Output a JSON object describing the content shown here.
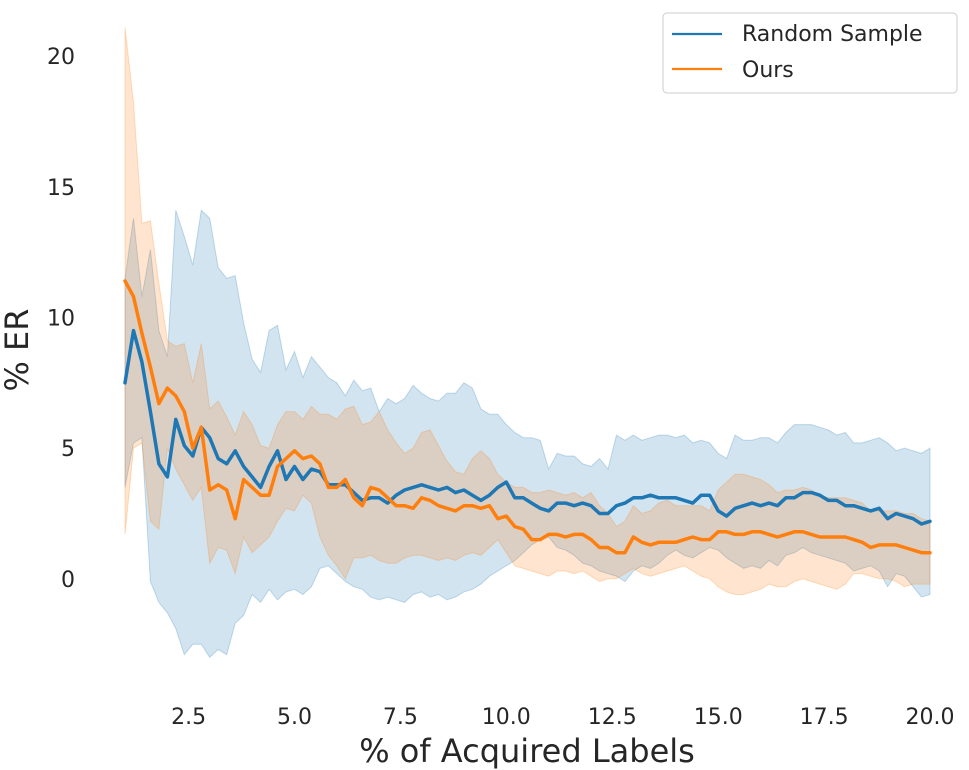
{
  "chart_data": {
    "type": "line",
    "title": "",
    "xlabel": "% of Acquired Labels",
    "ylabel": "% ER",
    "xlim": [
      1.0,
      20.0
    ],
    "ylim": [
      -4.1,
      21.0
    ],
    "xticks": [
      2.5,
      5.0,
      7.5,
      10.0,
      12.5,
      15.0,
      17.5,
      20.0
    ],
    "xtick_labels": [
      "2.5",
      "5.0",
      "7.5",
      "10.0",
      "12.5",
      "15.0",
      "17.5",
      "20.0"
    ],
    "yticks": [
      0,
      5,
      10,
      15,
      20
    ],
    "ytick_labels": [
      "0",
      "5",
      "10",
      "15",
      "20"
    ],
    "grid": false,
    "legend_position": "top-right",
    "x": [
      1.0,
      1.2,
      1.4,
      1.6,
      1.8,
      2.0,
      2.2,
      2.4,
      2.6,
      2.8,
      3.0,
      3.2,
      3.4,
      3.6,
      3.8,
      4.0,
      4.2,
      4.4,
      4.6,
      4.8,
      5.0,
      5.2,
      5.4,
      5.6,
      5.8,
      6.0,
      6.2,
      6.4,
      6.6,
      6.8,
      7.0,
      7.2,
      7.4,
      7.6,
      7.8,
      8.0,
      8.2,
      8.4,
      8.6,
      8.8,
      9.0,
      9.2,
      9.4,
      9.6,
      9.8,
      10.0,
      10.2,
      10.4,
      10.6,
      10.8,
      11.0,
      11.2,
      11.4,
      11.6,
      11.8,
      12.0,
      12.2,
      12.4,
      12.6,
      12.8,
      13.0,
      13.2,
      13.4,
      13.6,
      13.8,
      14.0,
      14.2,
      14.4,
      14.6,
      14.8,
      15.0,
      15.2,
      15.4,
      15.6,
      15.8,
      16.0,
      16.2,
      16.4,
      16.6,
      16.8,
      17.0,
      17.2,
      17.4,
      17.6,
      17.8,
      18.0,
      18.2,
      18.4,
      18.6,
      18.8,
      19.0,
      19.2,
      19.4,
      19.6,
      19.8,
      20.0
    ],
    "series": [
      {
        "name": "Random Sample",
        "color": "#1f77b4",
        "values": [
          7.5,
          9.5,
          8.3,
          6.4,
          4.4,
          3.9,
          6.1,
          5.1,
          4.7,
          5.8,
          5.4,
          4.6,
          4.4,
          4.9,
          4.3,
          3.9,
          3.5,
          4.3,
          4.9,
          3.8,
          4.3,
          3.8,
          4.2,
          4.1,
          3.6,
          3.6,
          3.6,
          3.3,
          3.0,
          3.1,
          3.1,
          2.9,
          3.2,
          3.4,
          3.5,
          3.6,
          3.5,
          3.4,
          3.5,
          3.3,
          3.4,
          3.2,
          3.0,
          3.2,
          3.5,
          3.7,
          3.1,
          3.1,
          2.9,
          2.7,
          2.6,
          2.9,
          2.9,
          2.8,
          2.9,
          2.8,
          2.5,
          2.5,
          2.8,
          2.9,
          3.1,
          3.1,
          3.2,
          3.1,
          3.1,
          3.1,
          3.0,
          2.9,
          3.2,
          3.2,
          2.6,
          2.4,
          2.7,
          2.8,
          2.9,
          2.8,
          2.9,
          2.8,
          3.1,
          3.1,
          3.3,
          3.3,
          3.2,
          3.0,
          3.0,
          2.8,
          2.8,
          2.7,
          2.6,
          2.7,
          2.3,
          2.5,
          2.4,
          2.3,
          2.1,
          2.2
        ],
        "lower": [
          3.5,
          5.2,
          5.4,
          -0.1,
          -0.9,
          -1.3,
          -1.9,
          -2.9,
          -2.5,
          -2.5,
          -3.0,
          -2.7,
          -2.9,
          -1.7,
          -1.4,
          -0.6,
          -0.9,
          -0.4,
          -0.8,
          -0.5,
          -0.4,
          -0.6,
          -0.3,
          0.4,
          0.5,
          0.2,
          -0.1,
          -0.3,
          -0.4,
          -0.7,
          -0.8,
          -0.7,
          -0.8,
          -0.9,
          -0.6,
          -0.5,
          -0.7,
          -0.6,
          -0.8,
          -0.7,
          -0.5,
          -0.4,
          -0.2,
          0.1,
          0.3,
          0.5,
          0.7,
          1.0,
          1.3,
          1.5,
          1.6,
          1.2,
          1.1,
          0.9,
          0.6,
          0.5,
          0.3,
          0.2,
          0.1,
          -0.1,
          0.3,
          0.5,
          0.4,
          0.6,
          0.9,
          1.1,
          0.9,
          0.8,
          1.0,
          1.2,
          1.1,
          0.8,
          0.6,
          0.4,
          0.5,
          0.4,
          0.7,
          0.5,
          0.9,
          1.0,
          1.2,
          1.0,
          0.9,
          0.8,
          0.7,
          0.6,
          0.3,
          0.4,
          0.5,
          0.3,
          -0.3,
          0.2,
          0.1,
          -0.3,
          -0.7,
          -0.6
        ],
        "upper": [
          11.5,
          13.8,
          10.8,
          12.6,
          9.5,
          8.5,
          14.1,
          13.1,
          12.0,
          14.1,
          13.8,
          11.9,
          11.5,
          11.6,
          9.8,
          8.4,
          7.9,
          9.5,
          9.7,
          8.0,
          8.7,
          7.7,
          8.5,
          8.1,
          7.7,
          7.5,
          7.0,
          7.6,
          7.2,
          7.3,
          6.4,
          6.9,
          6.7,
          6.9,
          7.4,
          7.1,
          6.9,
          6.8,
          7.1,
          7.1,
          7.5,
          7.3,
          6.5,
          6.3,
          6.3,
          5.9,
          5.6,
          5.4,
          5.4,
          5.3,
          4.2,
          4.8,
          4.7,
          4.7,
          4.4,
          4.3,
          4.6,
          4.2,
          5.5,
          5.3,
          5.5,
          5.3,
          5.4,
          5.5,
          5.5,
          5.4,
          5.5,
          5.2,
          5.3,
          5.2,
          4.8,
          4.6,
          5.5,
          5.3,
          5.3,
          5.4,
          5.4,
          5.2,
          5.6,
          5.9,
          5.9,
          5.9,
          5.8,
          5.7,
          5.5,
          5.6,
          5.2,
          5.2,
          5.3,
          5.4,
          5.2,
          4.9,
          5.0,
          4.9,
          4.8,
          5.0
        ]
      },
      {
        "name": "Ours",
        "color": "#ff7f0e",
        "values": [
          11.4,
          10.8,
          9.4,
          8.1,
          6.7,
          7.3,
          7.0,
          6.4,
          5.0,
          5.8,
          3.4,
          3.6,
          3.4,
          2.3,
          3.8,
          3.5,
          3.2,
          3.2,
          4.3,
          4.6,
          4.9,
          4.6,
          4.7,
          4.4,
          3.5,
          3.5,
          3.8,
          3.1,
          2.8,
          3.5,
          3.4,
          3.1,
          2.8,
          2.8,
          2.7,
          3.1,
          3.0,
          2.8,
          2.7,
          2.6,
          2.8,
          2.8,
          2.7,
          2.8,
          2.3,
          2.4,
          2.0,
          1.9,
          1.5,
          1.5,
          1.7,
          1.7,
          1.6,
          1.7,
          1.7,
          1.5,
          1.2,
          1.2,
          1.0,
          1.0,
          1.6,
          1.4,
          1.3,
          1.4,
          1.4,
          1.4,
          1.5,
          1.6,
          1.5,
          1.5,
          1.8,
          1.8,
          1.7,
          1.7,
          1.8,
          1.8,
          1.7,
          1.6,
          1.7,
          1.8,
          1.8,
          1.7,
          1.6,
          1.6,
          1.6,
          1.6,
          1.5,
          1.4,
          1.2,
          1.3,
          1.3,
          1.3,
          1.2,
          1.1,
          1.0,
          1.0
        ],
        "lower": [
          1.7,
          5.0,
          5.2,
          2.2,
          1.9,
          5.0,
          4.2,
          3.6,
          3.0,
          3.5,
          0.6,
          1.2,
          1.1,
          0.2,
          1.6,
          1.0,
          1.3,
          1.6,
          2.2,
          2.7,
          2.6,
          3.2,
          2.9,
          1.6,
          0.9,
          0.5,
          0.0,
          0.8,
          0.8,
          0.9,
          0.7,
          0.6,
          0.6,
          0.8,
          0.9,
          0.9,
          0.8,
          0.7,
          0.8,
          0.7,
          0.9,
          1.0,
          0.9,
          1.2,
          1.5,
          1.0,
          0.5,
          0.4,
          0.3,
          0.2,
          0.1,
          0.3,
          0.3,
          0.2,
          0.3,
          0.1,
          -0.1,
          0.0,
          0.0,
          0.2,
          0.4,
          0.2,
          0.1,
          0.2,
          0.3,
          0.4,
          0.5,
          0.3,
          0.1,
          0.0,
          -0.3,
          -0.5,
          -0.6,
          -0.6,
          -0.5,
          -0.4,
          -0.2,
          -0.3,
          -0.3,
          -0.1,
          0.0,
          -0.1,
          -0.2,
          -0.3,
          -0.4,
          -0.2,
          0.2,
          0.2,
          0.1,
          0.0,
          0.0,
          -0.1,
          -0.3,
          -0.2,
          -0.2,
          -0.2
        ],
        "upper": [
          21.1,
          18.2,
          13.6,
          13.7,
          11.3,
          9.1,
          8.9,
          9.0,
          7.5,
          9.0,
          6.5,
          6.8,
          6.2,
          5.5,
          6.4,
          5.9,
          5.1,
          5.0,
          5.9,
          6.4,
          6.4,
          6.1,
          6.6,
          6.3,
          6.3,
          6.1,
          6.5,
          6.6,
          5.9,
          6.0,
          6.4,
          5.7,
          5.2,
          4.8,
          5.0,
          5.6,
          5.7,
          5.1,
          4.5,
          4.1,
          4.0,
          4.6,
          4.9,
          4.6,
          4.0,
          3.7,
          3.5,
          3.5,
          3.3,
          3.3,
          3.4,
          3.3,
          3.2,
          3.3,
          3.1,
          3.3,
          2.8,
          2.5,
          2.0,
          2.2,
          2.8,
          2.5,
          2.6,
          2.9,
          3.0,
          2.8,
          2.8,
          2.8,
          2.8,
          2.6,
          3.4,
          3.7,
          4.0,
          4.0,
          3.9,
          3.8,
          3.6,
          3.3,
          3.4,
          3.4,
          3.5,
          3.4,
          3.2,
          3.1,
          3.1,
          3.1,
          3.0,
          2.9,
          2.6,
          2.6,
          2.6,
          2.6,
          2.5,
          2.5,
          2.3,
          2.2
        ]
      }
    ]
  }
}
